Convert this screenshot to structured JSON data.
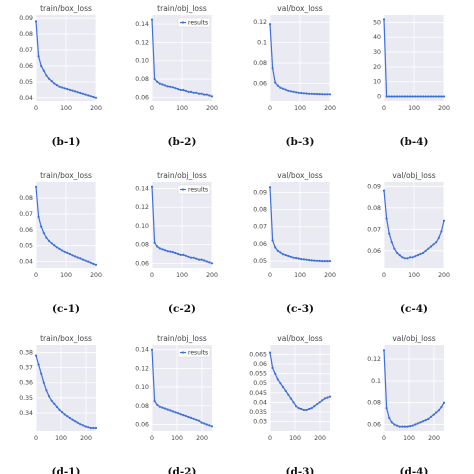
{
  "chart_data": [
    {
      "id": "b1",
      "type": "line",
      "title": "train/box_loss",
      "caption": "(b-1)",
      "show_title": true,
      "series": [
        {
          "values": [
            0.088,
            0.066,
            0.06,
            0.057,
            0.054,
            0.052,
            0.0505,
            0.049,
            0.048,
            0.047,
            0.0465,
            0.046,
            0.0455,
            0.045,
            0.0445,
            0.044,
            0.0435,
            0.043,
            0.0425,
            0.042,
            0.0415,
            0.041,
            0.0405,
            0.04
          ]
        }
      ],
      "xlim": [
        0,
        200
      ],
      "ylim": [
        0.038,
        0.092
      ],
      "x_ticks": [
        0,
        100,
        200
      ],
      "y_ticks": [
        0.04,
        0.05,
        0.06,
        0.07,
        0.08,
        0.09
      ]
    },
    {
      "id": "b2",
      "type": "line",
      "title": "train/obj_loss",
      "caption": "(b-2)",
      "show_title": true,
      "series": [
        {
          "name": "results",
          "values": [
            0.145,
            0.08,
            0.077,
            0.075,
            0.074,
            0.073,
            0.072,
            0.0715,
            0.071,
            0.07,
            0.069,
            0.068,
            0.068,
            0.067,
            0.066,
            0.066,
            0.065,
            0.065,
            0.064,
            0.064,
            0.063,
            0.063,
            0.062,
            0.061
          ]
        }
      ],
      "legend": {
        "label": "results",
        "position": "top-right"
      },
      "xlim": [
        0,
        200
      ],
      "ylim": [
        0.056,
        0.15
      ],
      "x_ticks": [
        0,
        100,
        200
      ],
      "y_ticks": [
        0.06,
        0.08,
        0.1,
        0.12,
        0.14
      ],
      "y_tick_labels": [
        "0.06",
        "0.08",
        "0.10",
        "0.12",
        "0.14"
      ]
    },
    {
      "id": "b3",
      "type": "line",
      "title": "val/box_loss",
      "caption": "(b-3)",
      "show_title": true,
      "series": [
        {
          "values": [
            0.118,
            0.075,
            0.061,
            0.058,
            0.056,
            0.055,
            0.054,
            0.053,
            0.0525,
            0.052,
            0.0515,
            0.051,
            0.0508,
            0.0505,
            0.0503,
            0.05,
            0.05,
            0.0498,
            0.0498,
            0.0497,
            0.0496,
            0.0495,
            0.0495,
            0.0495
          ]
        }
      ],
      "xlim": [
        0,
        200
      ],
      "ylim": [
        0.043,
        0.127
      ],
      "x_ticks": [
        0,
        100,
        200
      ],
      "y_ticks": [
        0.06,
        0.08,
        0.1,
        0.12
      ]
    },
    {
      "id": "b4",
      "type": "line",
      "title": "",
      "caption": "(b-4)",
      "show_title": false,
      "series": [
        {
          "values": [
            52,
            0.06,
            0.06,
            0.06,
            0.06,
            0.06,
            0.06,
            0.06,
            0.06,
            0.06,
            0.06,
            0.06,
            0.06,
            0.06,
            0.06,
            0.06,
            0.06,
            0.06,
            0.06,
            0.06,
            0.06,
            0.06,
            0.06,
            0.06
          ]
        }
      ],
      "xlim": [
        0,
        200
      ],
      "ylim": [
        -3,
        55
      ],
      "x_ticks": [
        0,
        100,
        200
      ],
      "y_ticks": [
        0,
        10,
        20,
        30,
        40,
        50
      ]
    },
    {
      "id": "c1",
      "type": "line",
      "title": "train/box_loss",
      "caption": "(c-1)",
      "show_title": true,
      "series": [
        {
          "values": [
            0.087,
            0.068,
            0.062,
            0.058,
            0.055,
            0.053,
            0.0515,
            0.0502,
            0.049,
            0.048,
            0.047,
            0.0462,
            0.0455,
            0.0448,
            0.044,
            0.0433,
            0.0426,
            0.042,
            0.0413,
            0.0406,
            0.04,
            0.0393,
            0.0386,
            0.038
          ]
        }
      ],
      "xlim": [
        0,
        200
      ],
      "ylim": [
        0.036,
        0.09
      ],
      "x_ticks": [
        0,
        100,
        200
      ],
      "y_ticks": [
        0.04,
        0.05,
        0.06,
        0.07,
        0.08
      ]
    },
    {
      "id": "c2",
      "type": "line",
      "title": "train/obj_loss",
      "caption": "(c-2)",
      "show_title": true,
      "series": [
        {
          "name": "results",
          "values": [
            0.142,
            0.082,
            0.078,
            0.076,
            0.075,
            0.074,
            0.073,
            0.0725,
            0.072,
            0.071,
            0.07,
            0.069,
            0.069,
            0.068,
            0.067,
            0.066,
            0.066,
            0.065,
            0.064,
            0.064,
            0.063,
            0.062,
            0.061,
            0.06
          ]
        }
      ],
      "legend": {
        "label": "results",
        "position": "top-right"
      },
      "xlim": [
        0,
        200
      ],
      "ylim": [
        0.055,
        0.147
      ],
      "x_ticks": [
        0,
        100,
        200
      ],
      "y_ticks": [
        0.06,
        0.08,
        0.1,
        0.12,
        0.14
      ],
      "y_tick_labels": [
        "0.06",
        "0.08",
        "0.10",
        "0.12",
        "0.14"
      ]
    },
    {
      "id": "c3",
      "type": "line",
      "title": "val/box_loss",
      "caption": "(c-3)",
      "show_title": true,
      "series": [
        {
          "values": [
            0.093,
            0.062,
            0.058,
            0.056,
            0.055,
            0.054,
            0.0535,
            0.053,
            0.0525,
            0.052,
            0.0518,
            0.0515,
            0.0512,
            0.051,
            0.0508,
            0.0506,
            0.0504,
            0.0503,
            0.0502,
            0.0501,
            0.05,
            0.05,
            0.05,
            0.05
          ]
        }
      ],
      "xlim": [
        0,
        200
      ],
      "ylim": [
        0.046,
        0.096
      ],
      "x_ticks": [
        0,
        100,
        200
      ],
      "y_ticks": [
        0.05,
        0.06,
        0.07,
        0.08,
        0.09
      ]
    },
    {
      "id": "c4",
      "type": "line",
      "title": "val/obj_loss",
      "caption": "(c-4)",
      "show_title": true,
      "series": [
        {
          "values": [
            0.088,
            0.075,
            0.068,
            0.064,
            0.061,
            0.059,
            0.058,
            0.057,
            0.0565,
            0.0565,
            0.057,
            0.057,
            0.0575,
            0.058,
            0.0585,
            0.059,
            0.06,
            0.061,
            0.062,
            0.063,
            0.064,
            0.066,
            0.069,
            0.074
          ]
        }
      ],
      "xlim": [
        0,
        200
      ],
      "ylim": [
        0.052,
        0.092
      ],
      "x_ticks": [
        0,
        100,
        200
      ],
      "y_ticks": [
        0.06,
        0.07,
        0.08,
        0.09
      ]
    },
    {
      "id": "d1",
      "type": "line",
      "title": "train/box_loss",
      "caption": "(d-1)",
      "show_title": true,
      "series": [
        {
          "values": [
            0.378,
            0.372,
            0.366,
            0.36,
            0.355,
            0.351,
            0.348,
            0.346,
            0.344,
            0.342,
            0.3405,
            0.339,
            0.3378,
            0.3366,
            0.3355,
            0.3345,
            0.3335,
            0.3325,
            0.3318,
            0.331,
            0.3305,
            0.33,
            0.33,
            0.33
          ]
        }
      ],
      "xlim": [
        0,
        240
      ],
      "ylim": [
        0.328,
        0.385
      ],
      "x_ticks": [
        0,
        100,
        200
      ],
      "y_ticks": [
        0.34,
        0.35,
        0.36,
        0.37,
        0.38
      ]
    },
    {
      "id": "d2",
      "type": "line",
      "title": "train/obj_loss",
      "caption": "(d-2)",
      "show_title": true,
      "series": [
        {
          "name": "results",
          "values": [
            0.14,
            0.085,
            0.081,
            0.079,
            0.078,
            0.077,
            0.076,
            0.075,
            0.074,
            0.073,
            0.072,
            0.071,
            0.07,
            0.069,
            0.068,
            0.067,
            0.066,
            0.065,
            0.064,
            0.062,
            0.061,
            0.06,
            0.059,
            0.058
          ]
        }
      ],
      "legend": {
        "label": "results",
        "position": "top-right"
      },
      "xlim": [
        0,
        240
      ],
      "ylim": [
        0.053,
        0.145
      ],
      "x_ticks": [
        0,
        100,
        200
      ],
      "y_ticks": [
        0.06,
        0.08,
        0.1,
        0.12,
        0.14
      ],
      "y_tick_labels": [
        "0.06",
        "0.08",
        "0.10",
        "0.12",
        "0.14"
      ]
    },
    {
      "id": "d3",
      "type": "line",
      "title": "val/box_loss",
      "caption": "(d-3)",
      "show_title": true,
      "series": [
        {
          "values": [
            0.066,
            0.058,
            0.055,
            0.052,
            0.05,
            0.048,
            0.046,
            0.044,
            0.042,
            0.04,
            0.038,
            0.037,
            0.0365,
            0.036,
            0.036,
            0.0365,
            0.037,
            0.038,
            0.039,
            0.04,
            0.041,
            0.042,
            0.0425,
            0.043
          ]
        }
      ],
      "xlim": [
        0,
        240
      ],
      "ylim": [
        0.025,
        0.07
      ],
      "x_ticks": [
        0,
        100,
        200
      ],
      "y_ticks": [
        0.03,
        0.035,
        0.04,
        0.045,
        0.05,
        0.055,
        0.06,
        0.065
      ]
    },
    {
      "id": "d4",
      "type": "line",
      "title": "val/obj_loss",
      "caption": "(d-4)",
      "show_title": true,
      "series": [
        {
          "values": [
            0.128,
            0.075,
            0.066,
            0.062,
            0.06,
            0.059,
            0.058,
            0.058,
            0.058,
            0.058,
            0.0585,
            0.059,
            0.06,
            0.061,
            0.062,
            0.063,
            0.064,
            0.065,
            0.067,
            0.069,
            0.071,
            0.073,
            0.076,
            0.08
          ]
        }
      ],
      "xlim": [
        0,
        240
      ],
      "ylim": [
        0.054,
        0.133
      ],
      "x_ticks": [
        0,
        100,
        200
      ],
      "y_ticks": [
        0.06,
        0.08,
        0.1,
        0.12
      ]
    }
  ]
}
